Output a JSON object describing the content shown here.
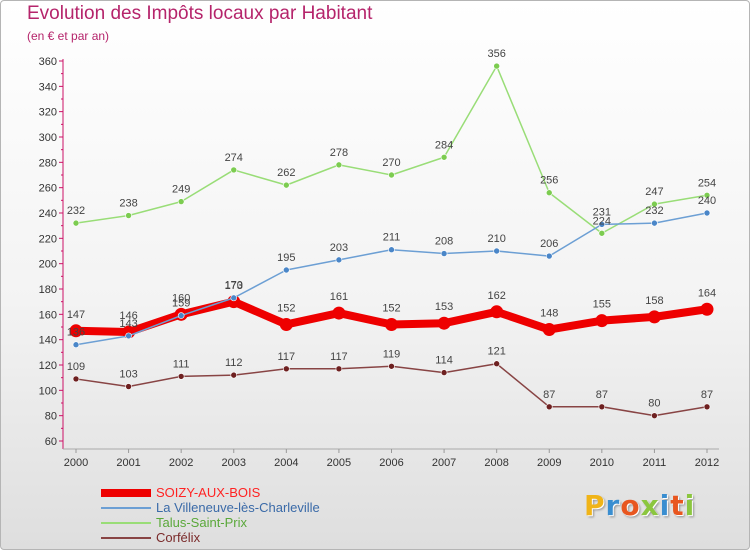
{
  "title": "Evolution des Impôts locaux par Habitant",
  "subtitle": "(en € et par an)",
  "logo_text": "Proxiti",
  "logo_colors": [
    "#f0b418",
    "#3a8ed0",
    "#e8561f",
    "#8bc63f",
    "#3a8ed0",
    "#e8561f",
    "#8bc63f"
  ],
  "chart_data": {
    "type": "line",
    "title": "Evolution des Impôts locaux par Habitant",
    "subtitle": "(en € et par an)",
    "xlabel": "",
    "ylabel": "",
    "x": [
      2000,
      2001,
      2002,
      2003,
      2004,
      2005,
      2006,
      2007,
      2008,
      2009,
      2010,
      2011,
      2012
    ],
    "ylim": [
      60,
      360
    ],
    "ytick_step": 20,
    "grid": false,
    "legend_position": "bottom-left",
    "series": [
      {
        "name": "SOIZY-AUX-BOIS",
        "color": "#ee0000",
        "marker_color": "#ee0000",
        "emphasis": true,
        "values": [
          147,
          146,
          160,
          170,
          152,
          161,
          152,
          153,
          162,
          148,
          155,
          158,
          164
        ]
      },
      {
        "name": "La Villeneuve-lès-Charleville",
        "color": "#6c9fd4",
        "marker_color": "#4a86c8",
        "emphasis": false,
        "values": [
          136,
          143,
          159,
          173,
          195,
          203,
          211,
          208,
          210,
          206,
          231,
          232,
          240
        ]
      },
      {
        "name": "Talus-Saint-Prix",
        "color": "#99dd77",
        "marker_color": "#7ccc50",
        "emphasis": false,
        "values": [
          232,
          238,
          249,
          274,
          262,
          278,
          270,
          284,
          356,
          256,
          224,
          247,
          254
        ]
      },
      {
        "name": "Corfélix",
        "color": "#884444",
        "marker_color": "#6e2020",
        "emphasis": false,
        "values": [
          109,
          103,
          111,
          112,
          117,
          117,
          119,
          114,
          121,
          87,
          87,
          80,
          87
        ]
      }
    ]
  }
}
